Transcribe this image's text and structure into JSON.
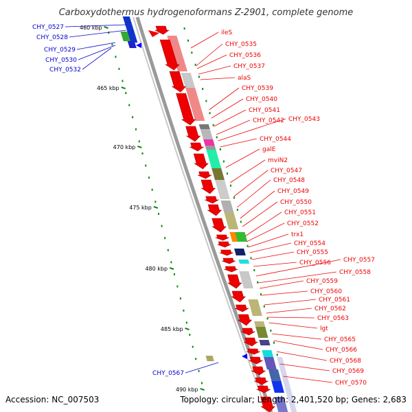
{
  "title": "Carboxydothermus hydrogenoformans Z-2901, complete genome",
  "accession": "Accession: NC_007503",
  "summary": "Topology: circular; Length: 2,401,520 bp; Genes: 2,683",
  "colors": {
    "forward_label": "#ee0000",
    "reverse_label": "#0000cc",
    "leader": "#0000cc",
    "tick": "#118811",
    "backbone": "#888888"
  },
  "scale": {
    "labels": [
      "460 kbp",
      "465 kbp",
      "470 kbp",
      "475 kbp",
      "480 kbp",
      "485 kbp",
      "490 kbp"
    ]
  },
  "reverse_genes": [
    "CHY_0527",
    "CHY_0528",
    "CHY_0529",
    "CHY_0530",
    "CHY_0532",
    "CHY_0567"
  ],
  "forward_genes": [
    "ileS",
    "CHY_0535",
    "CHY_0536",
    "CHY_0537",
    "alaS",
    "CHY_0539",
    "CHY_0540",
    "CHY_0541",
    "CHY_0542",
    "CHY_0543",
    "CHY_0544",
    "galE",
    "mviN2",
    "CHY_0547",
    "CHY_0548",
    "CHY_0549",
    "CHY_0550",
    "CHY_0551",
    "CHY_0552",
    "trx1",
    "CHY_0554",
    "CHY_0555",
    "CHY_0556",
    "CHY_0557",
    "CHY_0558",
    "CHY_0559",
    "CHY_0560",
    "CHY_0561",
    "CHY_0562",
    "CHY_0563",
    "lgt",
    "CHY_0565",
    "CHY_0566",
    "CHY_0568",
    "CHY_0569",
    "CHY_0570"
  ]
}
